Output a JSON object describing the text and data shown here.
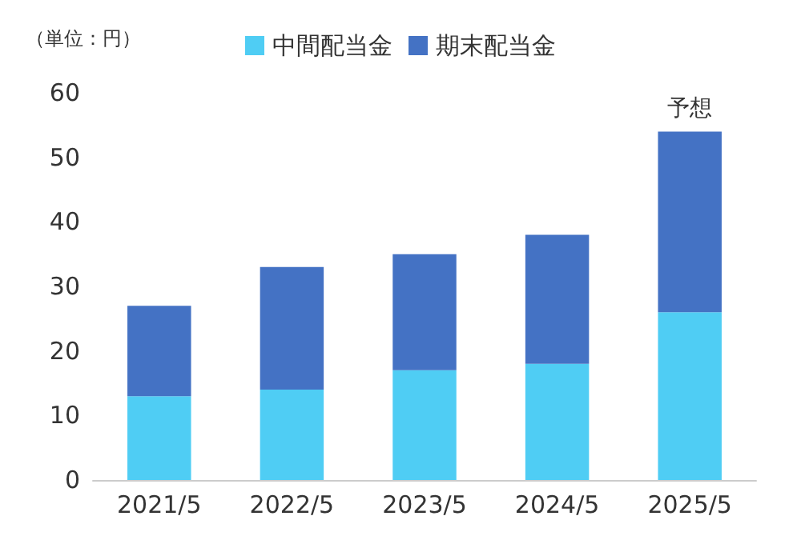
{
  "chart_data": {
    "type": "bar",
    "stacked": true,
    "ylabel": "（単位：円）",
    "categories": [
      "2021/5",
      "2022/5",
      "2023/5",
      "2024/5",
      "2025/5"
    ],
    "series": [
      {
        "name": "中間配当金",
        "color": "#4fcdf4",
        "values": [
          13,
          14,
          17,
          18,
          26
        ]
      },
      {
        "name": "期末配当金",
        "color": "#4472c4",
        "values": [
          14,
          19,
          18,
          20,
          28
        ]
      }
    ],
    "ylim": [
      0,
      60
    ],
    "yticks": [
      0,
      10,
      20,
      30,
      40,
      50,
      60
    ],
    "grid": false,
    "legend": "top",
    "annotations": [
      {
        "text": "予想",
        "x": "2025/5",
        "y": 54
      }
    ]
  }
}
